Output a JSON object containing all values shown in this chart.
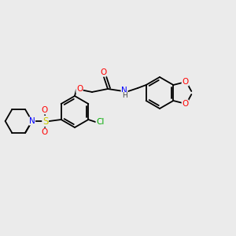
{
  "background_color": "#ebebeb",
  "bond_color": "#000000",
  "atom_colors": {
    "O": "#ff0000",
    "N": "#0000ff",
    "S": "#cccc00",
    "Cl": "#00aa00",
    "H": "#444444",
    "C": "#000000"
  },
  "figsize": [
    3.0,
    3.0
  ],
  "dpi": 100
}
